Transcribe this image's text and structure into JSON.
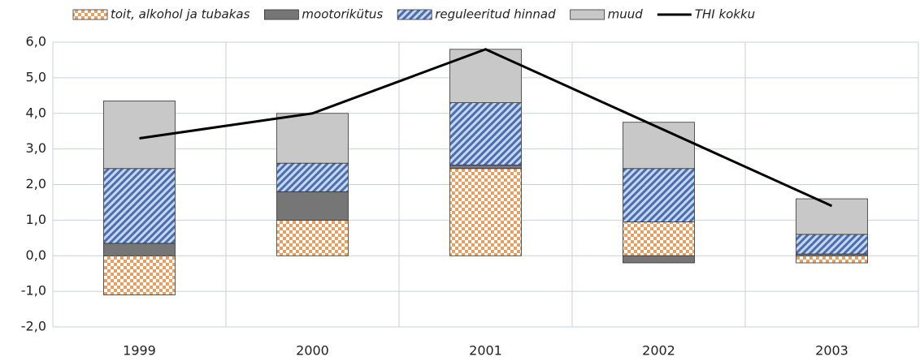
{
  "chart_data": {
    "type": "stacked_bar_line",
    "categories": [
      "1999",
      "2000",
      "2001",
      "2002",
      "2003"
    ],
    "series": [
      {
        "name": "toit, alkohol ja tubakas",
        "color": "#e8a060",
        "pattern": "checker",
        "values": [
          -1.1,
          1.0,
          2.45,
          0.95,
          -0.2
        ]
      },
      {
        "name": "mootorikütus",
        "color": "#767676",
        "pattern": "solid",
        "values": [
          0.35,
          0.8,
          0.1,
          -0.2,
          0.05
        ]
      },
      {
        "name": "reguleeritud hinnad",
        "color": "#4a6fb0",
        "pattern": "hatch",
        "values": [
          2.1,
          0.8,
          1.75,
          1.5,
          0.55
        ]
      },
      {
        "name": "muud",
        "color": "#c8c8c8",
        "pattern": "solid",
        "values": [
          1.9,
          1.4,
          1.5,
          1.3,
          1.0
        ]
      },
      {
        "name": "THI kokku",
        "color": "#000000",
        "kind": "line",
        "values": [
          3.3,
          4.0,
          5.8,
          3.6,
          1.4
        ]
      }
    ],
    "ylim": [
      -2,
      6
    ],
    "yticks": [
      {
        "value": -2,
        "label": "-2,0"
      },
      {
        "value": -1,
        "label": "-1,0"
      },
      {
        "value": 0,
        "label": "0,0"
      },
      {
        "value": 1,
        "label": "1,0"
      },
      {
        "value": 2,
        "label": "2,0"
      },
      {
        "value": 3,
        "label": "3,0"
      },
      {
        "value": 4,
        "label": "4,0"
      },
      {
        "value": 5,
        "label": "5,0"
      },
      {
        "value": 6,
        "label": "6,0"
      }
    ],
    "grid": true
  }
}
